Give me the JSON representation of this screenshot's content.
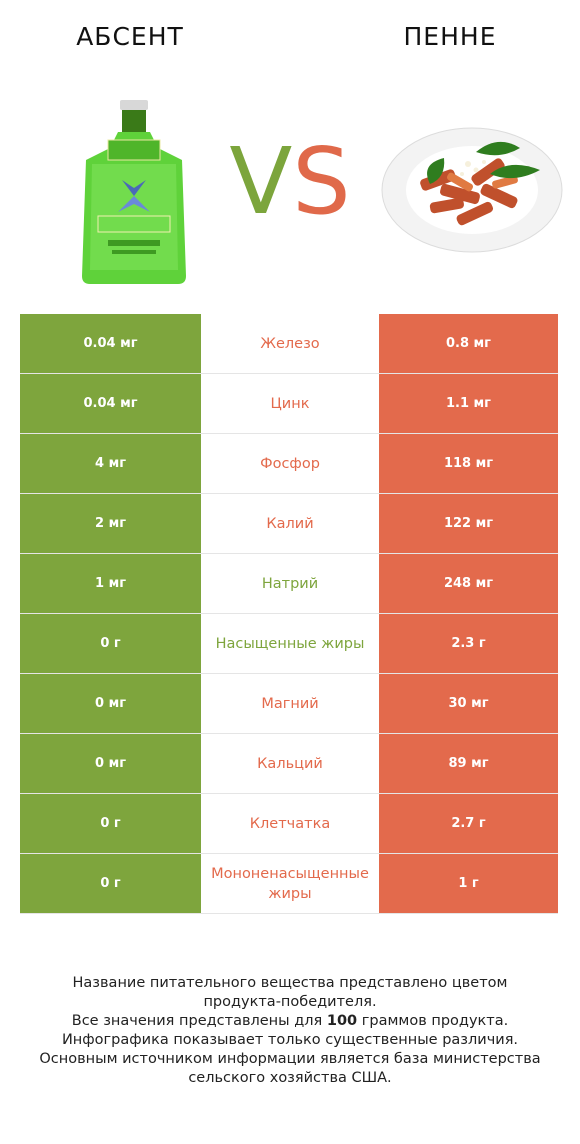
{
  "header": {
    "left_title": "АБСЕНТ",
    "right_title": "ПЕННЕ",
    "vs_v": "V",
    "vs_s": "S"
  },
  "colors": {
    "green": "#7ea53d",
    "red": "#e36a4c"
  },
  "rows": [
    {
      "left": "0.04 мг",
      "nutrient": "Железо",
      "right": "0.8 мг",
      "winner": "red"
    },
    {
      "left": "0.04 мг",
      "nutrient": "Цинк",
      "right": "1.1 мг",
      "winner": "red"
    },
    {
      "left": "4 мг",
      "nutrient": "Фосфор",
      "right": "118 мг",
      "winner": "red"
    },
    {
      "left": "2 мг",
      "nutrient": "Калий",
      "right": "122 мг",
      "winner": "red"
    },
    {
      "left": "1 мг",
      "nutrient": "Натрий",
      "right": "248 мг",
      "winner": "green"
    },
    {
      "left": "0 г",
      "nutrient": "Насыщенные жиры",
      "right": "2.3 г",
      "winner": "green"
    },
    {
      "left": "0 мг",
      "nutrient": "Магний",
      "right": "30 мг",
      "winner": "red"
    },
    {
      "left": "0 мг",
      "nutrient": "Кальций",
      "right": "89 мг",
      "winner": "red"
    },
    {
      "left": "0 г",
      "nutrient": "Клетчатка",
      "right": "2.7 г",
      "winner": "red"
    },
    {
      "left": "0 г",
      "nutrient": "Мононенасыщенные жиры",
      "right": "1 г",
      "winner": "red"
    }
  ],
  "footer": {
    "line1": "Название питательного вещества представлено цветом",
    "line2": "продукта-победителя.",
    "line3_pre": "Все значения представлены для ",
    "line3_bold": "100",
    "line3_post": " граммов продукта.",
    "line4": "Инфографика показывает только существенные различия.",
    "line5": "Основным источником информации является база министерства",
    "line6": "сельского хозяйства США."
  }
}
